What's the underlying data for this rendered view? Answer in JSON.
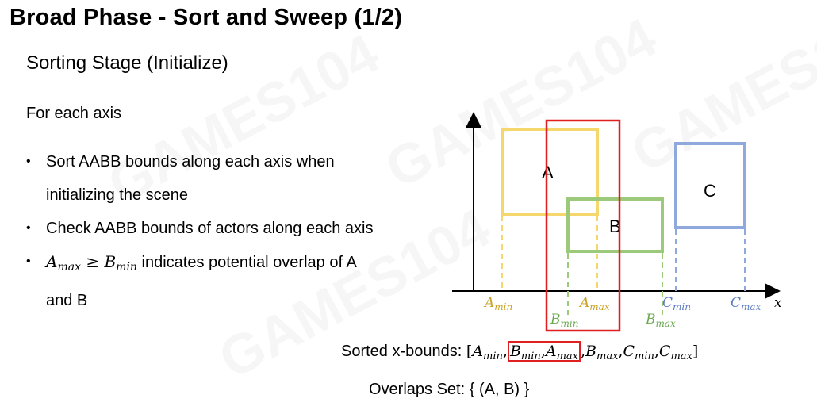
{
  "slide": {
    "title": "Broad Phase - Sort and Sweep (1/2)",
    "subtitle": "Sorting Stage (Initialize)",
    "lead": "For each axis",
    "bullets": [
      "Sort AABB bounds along each axis when",
      "initializing the scene",
      "Check AABB bounds of actors along each axis",
      "indicates potential overlap of A",
      "and B"
    ],
    "condition": {
      "lhs": "A",
      "lhs_sub": "max",
      "op": "≥",
      "rhs": "B",
      "rhs_sub": "min"
    },
    "watermark": "GAMES104"
  },
  "diagram": {
    "axis_x_label": "x",
    "boxes": [
      {
        "label": "A",
        "color": "#f5d76e"
      },
      {
        "label": "B",
        "color": "#9dc97a"
      },
      {
        "label": "C",
        "color": "#8fa9dd"
      }
    ],
    "sweep_highlight_color": "#e02020",
    "bounds": [
      {
        "name": "A",
        "sub": "min",
        "color": "#c9a227"
      },
      {
        "name": "B",
        "sub": "min",
        "color": "#6aa84f"
      },
      {
        "name": "A",
        "sub": "max",
        "color": "#c9a227"
      },
      {
        "name": "B",
        "sub": "max",
        "color": "#6aa84f"
      },
      {
        "name": "C",
        "sub": "min",
        "color": "#5a7cc4"
      },
      {
        "name": "C",
        "sub": "max",
        "color": "#5a7cc4"
      }
    ]
  },
  "sorted": {
    "label": "Sorted x-bounds:",
    "open": "[",
    "close": "]",
    "sep": ",",
    "items": [
      {
        "name": "A",
        "sub": "min"
      },
      {
        "name": "B",
        "sub": "min"
      },
      {
        "name": "A",
        "sub": "max"
      },
      {
        "name": "B",
        "sub": "max"
      },
      {
        "name": "C",
        "sub": "min"
      },
      {
        "name": "C",
        "sub": "max"
      }
    ]
  },
  "overlaps": {
    "text": "Overlaps Set: { (A, B) }"
  }
}
